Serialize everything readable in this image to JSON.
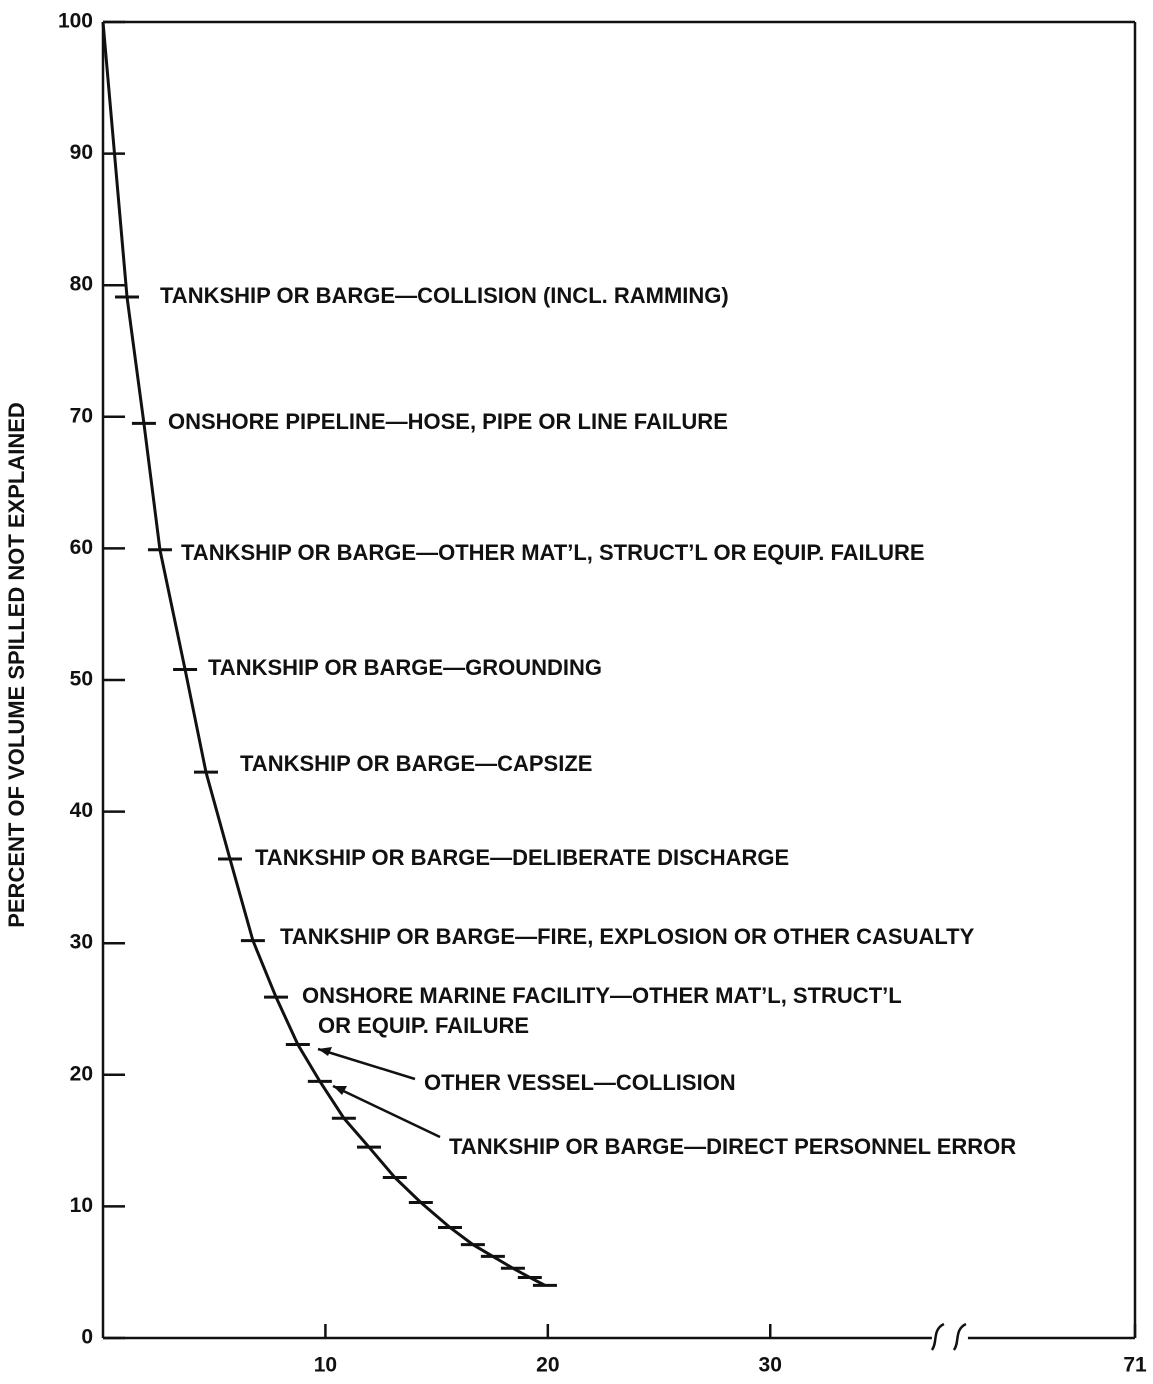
{
  "chart_data": {
    "type": "line",
    "ylabel": "PERCENT OF VOLUME SPILLED NOT EXPLAINED",
    "x": [
      0,
      1.08,
      1.84,
      2.56,
      3.69,
      4.63,
      5.71,
      6.74,
      7.78,
      8.76,
      9.75,
      10.83,
      11.96,
      13.12,
      14.29,
      15.6,
      16.63,
      17.53,
      18.43,
      19.19,
      19.87
    ],
    "values": [
      100,
      79.1,
      69.5,
      59.9,
      50.8,
      43.0,
      36.4,
      30.2,
      25.9,
      22.3,
      19.5,
      16.7,
      14.5,
      12.2,
      10.3,
      8.4,
      7.1,
      6.2,
      5.3,
      4.6,
      4.0
    ],
    "color": "#111111",
    "xlim": [
      0,
      71
    ],
    "xbreak": [
      37,
      69
    ],
    "xticks": [
      10,
      20,
      30,
      71
    ],
    "ylim": [
      0,
      100
    ],
    "yticks": [
      0,
      10,
      20,
      30,
      40,
      50,
      60,
      70,
      80,
      90,
      100
    ],
    "annotations": [
      "TANKSHIP OR BARGE—COLLISION (INCL. RAMMING)",
      "ONSHORE PIPELINE—HOSE, PIPE OR LINE FAILURE",
      "TANKSHIP OR BARGE—OTHER MAT’L, STRUCT’L OR EQUIP. FAILURE",
      "TANKSHIP OR BARGE—GROUNDING",
      "TANKSHIP OR BARGE—CAPSIZE",
      "TANKSHIP OR BARGE—DELIBERATE DISCHARGE",
      "TANKSHIP OR BARGE—FIRE, EXPLOSION OR OTHER CASUALTY",
      "ONSHORE MARINE FACILITY—OTHER MAT’L,  STRUCT’L",
      "OR EQUIP. FAILURE",
      "OTHER VESSEL—COLLISION",
      "TANKSHIP OR BARGE—DIRECT PERSONNEL ERROR"
    ]
  }
}
